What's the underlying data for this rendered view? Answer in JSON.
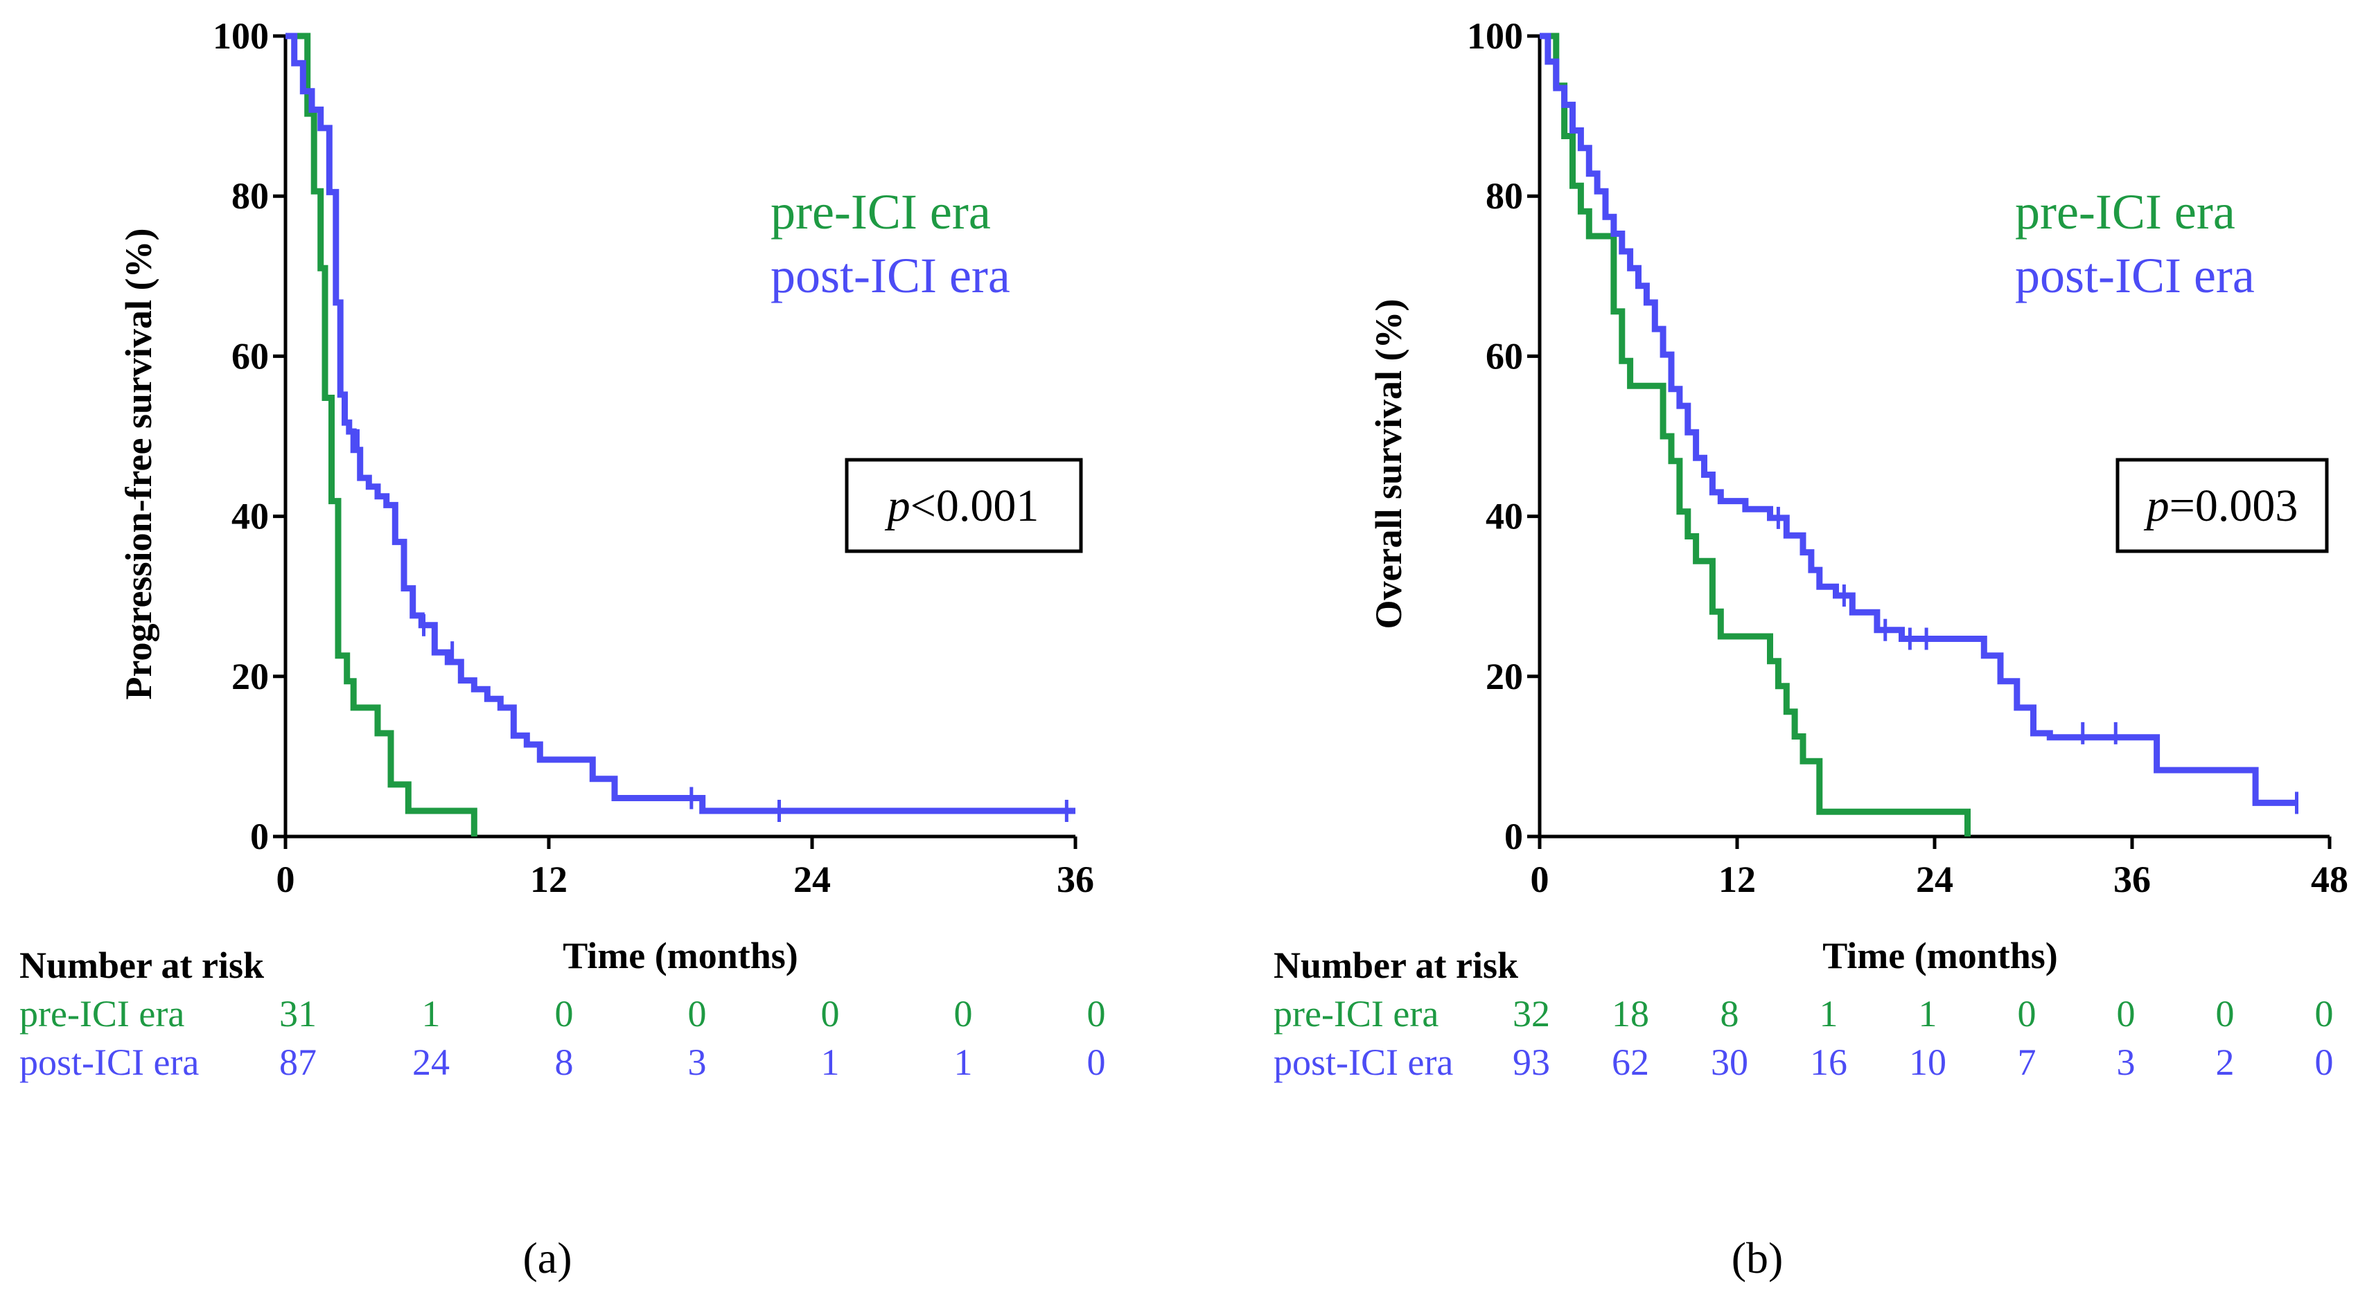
{
  "colors": {
    "pre": "#1e9a43",
    "post": "#4c4cf5",
    "axis": "#000000"
  },
  "chart_data": [
    {
      "type": "line",
      "panel_label": "(a)",
      "xlabel": "Time (months)",
      "ylabel": "Progression-free survival (%)",
      "xlim": [
        0,
        36
      ],
      "ylim": [
        0,
        100
      ],
      "xticks": [
        "0",
        "12",
        "24",
        "36"
      ],
      "yticks": [
        "0",
        "20",
        "40",
        "60",
        "80",
        "100"
      ],
      "pvalue": {
        "prefix": "p",
        "text": "<0.001"
      },
      "series": [
        {
          "name": "pre-ICI era",
          "key": "pre",
          "x": [
            0,
            1.0,
            1.0,
            1.3,
            1.3,
            1.6,
            1.6,
            1.8,
            1.8,
            2.1,
            2.1,
            2.4,
            2.4,
            2.6,
            2.6,
            2.8,
            2.8,
            3.1,
            3.1,
            4.2,
            4.2,
            4.8,
            4.8,
            5.6,
            5.6,
            8.6,
            8.6
          ],
          "y": [
            100,
            100,
            90.3,
            90.3,
            80.6,
            80.6,
            71.0,
            71.0,
            54.8,
            54.8,
            41.9,
            41.9,
            22.6,
            22.6,
            22.6,
            22.6,
            19.4,
            19.4,
            16.1,
            16.1,
            12.9,
            12.9,
            6.5,
            6.5,
            3.2,
            3.2,
            0
          ]
        },
        {
          "name": "post-ICI era",
          "key": "post",
          "x": [
            0,
            0.4,
            0.4,
            0.8,
            0.8,
            1.2,
            1.2,
            1.6,
            1.6,
            2.0,
            2.0,
            2.3,
            2.3,
            2.5,
            2.5,
            2.7,
            2.7,
            2.9,
            2.9,
            3.1,
            3.1,
            3.4,
            3.4,
            3.8,
            3.8,
            4.2,
            4.2,
            4.6,
            4.6,
            5.0,
            5.0,
            5.4,
            5.4,
            5.8,
            5.8,
            6.2,
            6.2,
            6.8,
            6.8,
            7.4,
            7.4,
            8.0,
            8.0,
            8.6,
            8.6,
            9.2,
            9.2,
            9.8,
            9.8,
            10.4,
            10.4,
            11.0,
            11.0,
            11.6,
            11.6,
            14.0,
            14.0,
            15.0,
            15.0,
            19.0,
            19.0,
            36.0
          ],
          "y": [
            100,
            100,
            96.6,
            96.6,
            93.1,
            93.1,
            90.8,
            90.8,
            88.5,
            88.5,
            80.5,
            80.5,
            66.7,
            66.7,
            55.2,
            55.2,
            51.7,
            51.7,
            50.6,
            50.6,
            48.3,
            48.3,
            44.8,
            44.8,
            43.7,
            43.7,
            42.5,
            42.5,
            41.4,
            41.4,
            36.8,
            36.8,
            31.0,
            31.0,
            27.6,
            27.6,
            26.4,
            26.4,
            23.0,
            23.0,
            21.8,
            21.8,
            19.5,
            19.5,
            18.4,
            18.4,
            17.2,
            17.2,
            16.1,
            16.1,
            12.6,
            12.6,
            11.5,
            11.5,
            9.6,
            9.6,
            7.2,
            7.2,
            4.8,
            4.8,
            3.2,
            3.2
          ]
        }
      ],
      "censor": {
        "post": [
          [
            3.3,
            49.5
          ],
          [
            6.3,
            26.4
          ],
          [
            7.6,
            23.0
          ],
          [
            18.5,
            4.8
          ],
          [
            22.5,
            3.2
          ],
          [
            35.6,
            3.2
          ]
        ]
      },
      "risk_table": {
        "header": "Number at risk",
        "rows": [
          {
            "label": "pre-ICI era",
            "key": "pre",
            "values": [
              "31",
              "1",
              "0",
              "0",
              "0",
              "0",
              "0"
            ]
          },
          {
            "label": "post-ICI era",
            "key": "post",
            "values": [
              "87",
              "24",
              "8",
              "3",
              "1",
              "1",
              "0"
            ]
          }
        ]
      }
    },
    {
      "type": "line",
      "panel_label": "(b)",
      "xlabel": "Time (months)",
      "ylabel": "Overall survival (%)",
      "xlim": [
        0,
        48
      ],
      "ylim": [
        0,
        100
      ],
      "xticks": [
        "0",
        "12",
        "24",
        "36",
        "48"
      ],
      "yticks": [
        "0",
        "20",
        "40",
        "60",
        "80",
        "100"
      ],
      "pvalue": {
        "prefix": "p",
        "text": "=0.003"
      },
      "series": [
        {
          "name": "pre-ICI era",
          "key": "pre",
          "x": [
            0,
            1.0,
            1.0,
            1.5,
            1.5,
            2.0,
            2.0,
            2.5,
            2.5,
            3.0,
            3.0,
            4.5,
            4.5,
            5.0,
            5.0,
            5.5,
            5.5,
            7.5,
            7.5,
            8.0,
            8.0,
            8.5,
            8.5,
            9.0,
            9.0,
            9.5,
            9.5,
            10.5,
            10.5,
            11.0,
            11.0,
            14.0,
            14.0,
            14.5,
            14.5,
            15.0,
            15.0,
            15.5,
            15.5,
            16.0,
            16.0,
            17.0,
            17.0,
            26.0,
            26.0
          ],
          "y": [
            100,
            100,
            93.8,
            93.8,
            87.5,
            87.5,
            81.3,
            81.3,
            78.1,
            78.1,
            75.0,
            75.0,
            65.6,
            65.6,
            59.4,
            59.4,
            56.3,
            56.3,
            50.0,
            50.0,
            46.9,
            46.9,
            40.6,
            40.6,
            37.5,
            37.5,
            34.4,
            34.4,
            28.1,
            28.1,
            25.0,
            25.0,
            21.9,
            21.9,
            18.8,
            18.8,
            15.6,
            15.6,
            12.5,
            12.5,
            9.4,
            9.4,
            3.1,
            3.1,
            0
          ]
        },
        {
          "name": "post-ICI era",
          "key": "post",
          "x": [
            0,
            0.5,
            0.5,
            1.0,
            1.0,
            1.5,
            1.5,
            2.0,
            2.0,
            2.5,
            2.5,
            3.0,
            3.0,
            3.5,
            3.5,
            4.0,
            4.0,
            4.5,
            4.5,
            5.0,
            5.0,
            5.5,
            5.5,
            6.0,
            6.0,
            6.5,
            6.5,
            7.0,
            7.0,
            7.5,
            7.5,
            8.0,
            8.0,
            8.5,
            8.5,
            9.0,
            9.0,
            9.5,
            9.5,
            10.0,
            10.0,
            10.5,
            10.5,
            11.0,
            11.0,
            12.5,
            12.5,
            14.0,
            14.0,
            15.0,
            15.0,
            16.0,
            16.0,
            16.5,
            16.5,
            17.0,
            17.0,
            18.0,
            18.0,
            19.0,
            19.0,
            20.5,
            20.5,
            22.0,
            22.0,
            27.0,
            27.0,
            28.0,
            28.0,
            29.0,
            29.0,
            30.0,
            30.0,
            31.0,
            31.0,
            37.5,
            37.5,
            43.5,
            43.5,
            46.0
          ],
          "y": [
            100,
            100,
            96.8,
            96.8,
            93.5,
            93.5,
            91.4,
            91.4,
            88.2,
            88.2,
            86.0,
            86.0,
            82.8,
            82.8,
            80.6,
            80.6,
            77.4,
            77.4,
            75.3,
            75.3,
            73.1,
            73.1,
            71.0,
            71.0,
            68.8,
            68.8,
            66.7,
            66.7,
            63.4,
            63.4,
            60.2,
            60.2,
            55.9,
            55.9,
            53.8,
            53.8,
            50.5,
            50.5,
            47.3,
            47.3,
            45.2,
            45.2,
            43.0,
            43.0,
            41.9,
            41.9,
            40.9,
            40.9,
            39.8,
            39.8,
            37.6,
            37.6,
            35.5,
            35.5,
            33.3,
            33.3,
            31.2,
            31.2,
            30.1,
            30.1,
            28.0,
            28.0,
            25.8,
            25.8,
            24.7,
            24.7,
            22.6,
            22.6,
            19.4,
            19.4,
            16.1,
            16.1,
            12.9,
            12.9,
            12.4,
            12.4,
            8.3,
            8.3,
            4.2,
            4.2
          ]
        }
      ],
      "censor": {
        "post": [
          [
            10.0,
            46.2
          ],
          [
            14.5,
            39.8
          ],
          [
            18.5,
            30.1
          ],
          [
            21.0,
            25.8
          ],
          [
            22.5,
            24.7
          ],
          [
            23.5,
            24.7
          ],
          [
            33.0,
            12.9
          ],
          [
            35.0,
            12.9
          ],
          [
            46.0,
            4.2
          ]
        ]
      },
      "risk_table": {
        "header": "Number at risk",
        "rows": [
          {
            "label": "pre-ICI era",
            "key": "pre",
            "values": [
              "32",
              "18",
              "8",
              "1",
              "1",
              "0",
              "0",
              "0",
              "0"
            ]
          },
          {
            "label": "post-ICI era",
            "key": "post",
            "values": [
              "93",
              "62",
              "30",
              "16",
              "10",
              "7",
              "3",
              "2",
              "0"
            ]
          }
        ]
      }
    }
  ]
}
